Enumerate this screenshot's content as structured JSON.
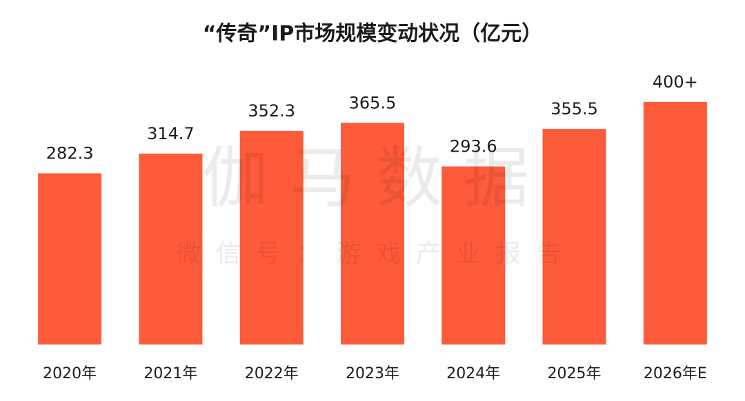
{
  "chart_data": {
    "type": "bar",
    "title": "“传奇”IP市场规模变动状况（亿元）",
    "categories": [
      "2020年",
      "2021年",
      "2022年",
      "2023年",
      "2024年",
      "2025年",
      "2026年E"
    ],
    "values": [
      282.3,
      314.7,
      352.3,
      365.5,
      293.6,
      355.5,
      400
    ],
    "value_labels": [
      "282.3",
      "314.7",
      "352.3",
      "365.5",
      "293.6",
      "355.5",
      "400+"
    ],
    "color": "#fe5b3a",
    "ylim": [
      0,
      568
    ],
    "watermark": "伽马数据",
    "watermark_subtitle": "微信号：游戏产业报告"
  }
}
